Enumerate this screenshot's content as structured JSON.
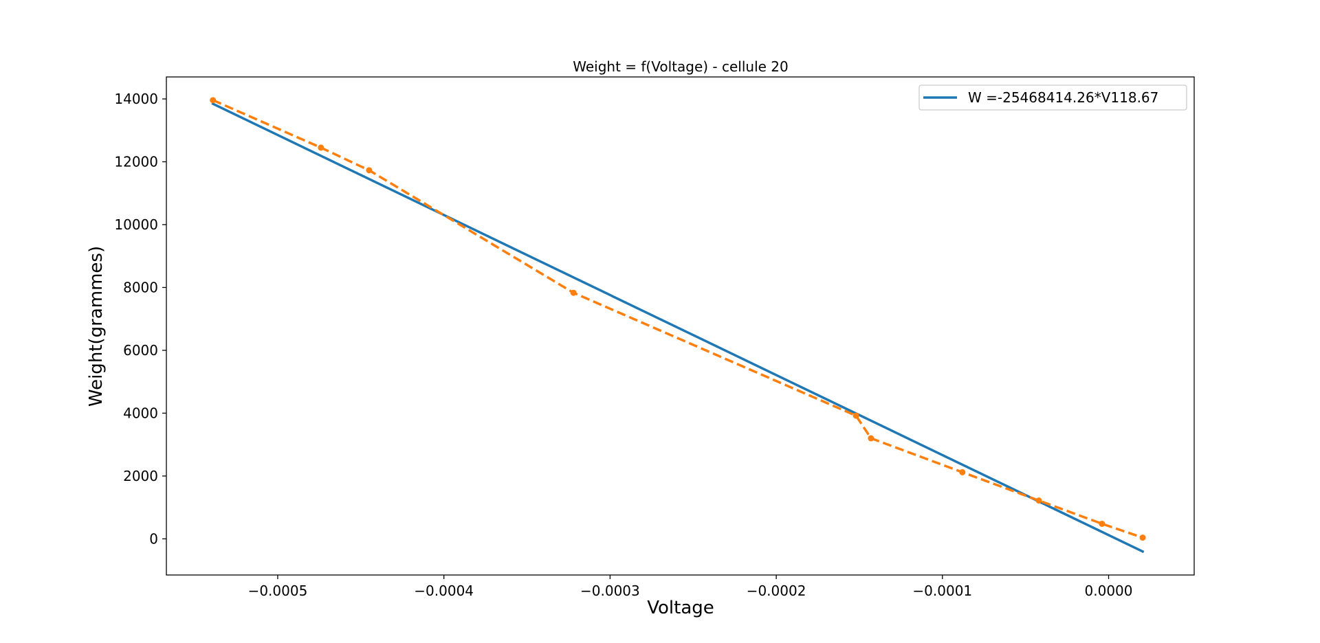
{
  "chart_data": {
    "type": "line",
    "title": "Weight = f(Voltage) - cellule 20",
    "xlabel": "Voltage",
    "ylabel": "Weight(grammes)",
    "xlim": [
      -0.000567,
      5.15e-05
    ],
    "ylim": [
      -1150,
      14700
    ],
    "xticks": [
      -0.0005,
      -0.0004,
      -0.0003,
      -0.0002,
      -0.0001,
      0.0
    ],
    "xtick_labels": [
      "−0.0005",
      "−0.0004",
      "−0.0003",
      "−0.0002",
      "−0.0001",
      "0.0000"
    ],
    "yticks": [
      0,
      2000,
      4000,
      6000,
      8000,
      10000,
      12000,
      14000
    ],
    "ytick_labels": [
      "0",
      "2000",
      "4000",
      "6000",
      "8000",
      "10000",
      "12000",
      "14000"
    ],
    "grid": false,
    "legend_position": "top-right",
    "series": [
      {
        "name": "W =-25468414.26*V118.67",
        "style": "solid",
        "color": "#1f77b4",
        "markers": false,
        "x": [
          -0.000539,
          2.05e-05
        ],
        "y": [
          13846,
          -403
        ]
      },
      {
        "style": "dashed",
        "color": "#ff7f0e",
        "markers": true,
        "x": [
          -0.000539,
          -0.000474,
          -0.000445,
          -0.000322,
          -0.000152,
          -0.000143,
          -8.8e-05,
          -4.2e-05,
          -4e-06,
          2.05e-05
        ],
        "y": [
          13960,
          12450,
          11730,
          7830,
          3920,
          3200,
          2120,
          1220,
          480,
          40
        ]
      }
    ]
  }
}
